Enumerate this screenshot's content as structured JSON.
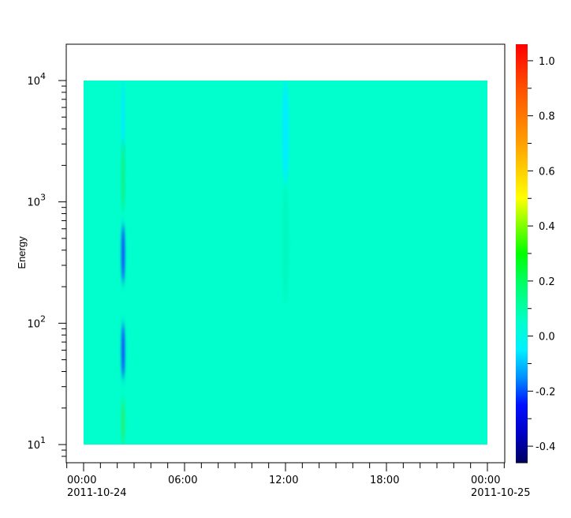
{
  "chart_data": {
    "type": "heatmap",
    "title": "",
    "xlabel": "",
    "ylabel": "Energy",
    "x_axis": {
      "type": "time",
      "range": [
        "2011-10-23 23:00",
        "2011-10-25 01:00"
      ],
      "ticks": [
        {
          "time": "00:00",
          "date": "2011-10-24",
          "hour": 0
        },
        {
          "time": "06:00",
          "date": "",
          "hour": 6
        },
        {
          "time": "12:00",
          "date": "",
          "hour": 12
        },
        {
          "time": "18:00",
          "date": "",
          "hour": 18
        },
        {
          "time": "00:00",
          "date": "2011-10-25",
          "hour": 24
        }
      ],
      "minor_tick_interval_hours": 1
    },
    "y_axis": {
      "scale": "log",
      "range": [
        7,
        20000
      ],
      "ticks": [
        {
          "base": "10",
          "exp": "1",
          "value": 10
        },
        {
          "base": "10",
          "exp": "2",
          "value": 100
        },
        {
          "base": "10",
          "exp": "3",
          "value": 1000
        },
        {
          "base": "10",
          "exp": "4",
          "value": 10000
        }
      ]
    },
    "data_extent": {
      "time_hours": [
        0,
        24
      ],
      "energy": [
        10,
        10000
      ]
    },
    "background_value": 0.05,
    "background_color": "#00ffcc",
    "features": [
      {
        "time_hours": 2.35,
        "duration_hours": 0.2,
        "energy": [
          2300,
          10000
        ],
        "value": -0.05,
        "color": "#00eaff"
      },
      {
        "time_hours": 2.35,
        "duration_hours": 0.2,
        "energy": [
          830,
          3200
        ],
        "value": 0.15,
        "color": "#10f080"
      },
      {
        "time_hours": 2.35,
        "duration_hours": 0.2,
        "energy": [
          215,
          650
        ],
        "value": -0.25,
        "color": "#0a48ff"
      },
      {
        "time_hours": 2.35,
        "duration_hours": 0.2,
        "energy": [
          35,
          100
        ],
        "value": -0.25,
        "color": "#0a48ff"
      },
      {
        "time_hours": 2.35,
        "duration_hours": 0.2,
        "energy": [
          10,
          24
        ],
        "value": 0.15,
        "color": "#20f070"
      },
      {
        "time_hours": 12.0,
        "duration_hours": 0.4,
        "energy": [
          1400,
          10000
        ],
        "value": -0.05,
        "color": "#00eeff"
      },
      {
        "time_hours": 12.0,
        "duration_hours": 0.4,
        "energy": [
          150,
          1400
        ],
        "value": 0.08,
        "color": "#00f8c0"
      }
    ],
    "colorbar": {
      "range": [
        -0.46,
        1.06
      ],
      "ticks": [
        "-0.4",
        "-0.2",
        "0.0",
        "0.2",
        "0.4",
        "0.6",
        "0.8",
        "1.0"
      ],
      "tick_values": [
        -0.4,
        -0.2,
        0.0,
        0.2,
        0.4,
        0.6,
        0.8,
        1.0
      ],
      "colormap": [
        {
          "value": -0.46,
          "color": "#000060"
        },
        {
          "value": -0.35,
          "color": "#0000c8"
        },
        {
          "value": -0.25,
          "color": "#0010ff"
        },
        {
          "value": -0.15,
          "color": "#0090ff"
        },
        {
          "value": -0.05,
          "color": "#00f0ff"
        },
        {
          "value": 0.05,
          "color": "#00ffcc"
        },
        {
          "value": 0.2,
          "color": "#00ff60"
        },
        {
          "value": 0.3,
          "color": "#00ff00"
        },
        {
          "value": 0.5,
          "color": "#ffff00"
        },
        {
          "value": 0.7,
          "color": "#ffa000"
        },
        {
          "value": 0.9,
          "color": "#ff5000"
        },
        {
          "value": 1.06,
          "color": "#ff0000"
        }
      ]
    }
  }
}
